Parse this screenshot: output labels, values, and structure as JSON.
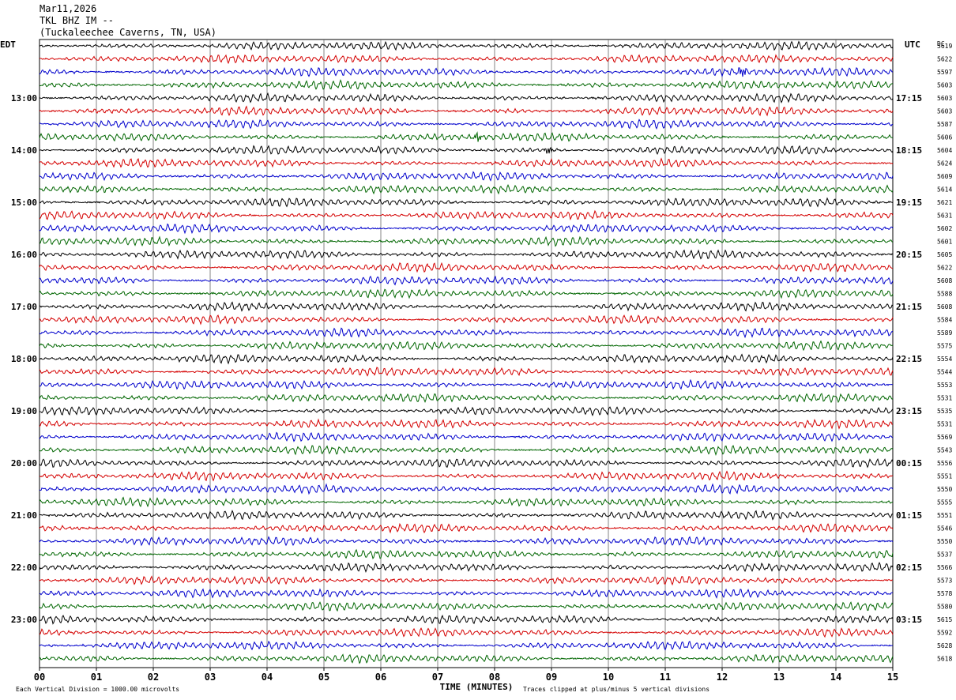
{
  "header": {
    "date": "Mar11,2026",
    "station": "TKL BHZ IM --",
    "location": "(Tuckaleechee Caverns, TN, USA)"
  },
  "chart_data": {
    "type": "line",
    "left_zone_label": "EDT",
    "right_zone_label": "UTC",
    "dc_label": "DC",
    "xlabel": "TIME (MINUTES)",
    "x_ticks": [
      "00",
      "01",
      "02",
      "03",
      "04",
      "05",
      "06",
      "07",
      "08",
      "09",
      "10",
      "11",
      "12",
      "13",
      "14",
      "15"
    ],
    "xlim": [
      0,
      15
    ],
    "footer_left": "Each Vertical Division = 1000.00 microvolts",
    "footer_right": "Traces clipped at plus/minus 5 vertical divisions",
    "trace_colors": [
      "#000000",
      "#d40000",
      "#0000cc",
      "#006600"
    ],
    "left_hour_labels": [
      {
        "trace": 4,
        "label": "13:00"
      },
      {
        "trace": 8,
        "label": "14:00"
      },
      {
        "trace": 12,
        "label": "15:00"
      },
      {
        "trace": 16,
        "label": "16:00"
      },
      {
        "trace": 20,
        "label": "17:00"
      },
      {
        "trace": 24,
        "label": "18:00"
      },
      {
        "trace": 28,
        "label": "19:00"
      },
      {
        "trace": 32,
        "label": "20:00"
      },
      {
        "trace": 36,
        "label": "21:00"
      },
      {
        "trace": 40,
        "label": "22:00"
      },
      {
        "trace": 44,
        "label": "23:00"
      }
    ],
    "right_hour_labels": [
      {
        "trace": 4,
        "label": "17:15"
      },
      {
        "trace": 8,
        "label": "18:15"
      },
      {
        "trace": 12,
        "label": "19:15"
      },
      {
        "trace": 16,
        "label": "20:15"
      },
      {
        "trace": 20,
        "label": "21:15"
      },
      {
        "trace": 24,
        "label": "22:15"
      },
      {
        "trace": 28,
        "label": "23:15"
      },
      {
        "trace": 32,
        "label": "00:15"
      },
      {
        "trace": 36,
        "label": "01:15"
      },
      {
        "trace": 40,
        "label": "02:15"
      },
      {
        "trace": 44,
        "label": "03:15"
      }
    ],
    "dc_values": [
      "5619",
      "5622",
      "5597",
      "5603",
      "5603",
      "5603",
      "5587",
      "5606",
      "5604",
      "5624",
      "5609",
      "5614",
      "5621",
      "5631",
      "5602",
      "5601",
      "5605",
      "5622",
      "5608",
      "5588",
      "5608",
      "5584",
      "5589",
      "5575",
      "5554",
      "5544",
      "5553",
      "5531",
      "5535",
      "5531",
      "5569",
      "5543",
      "5556",
      "5551",
      "5550",
      "5555",
      "5551",
      "5546",
      "5550",
      "5537",
      "5566",
      "5573",
      "5578",
      "5580",
      "5615",
      "5592",
      "5628",
      "5618"
    ],
    "events": [
      {
        "trace": 2,
        "minute": 12.35,
        "amplitude": 3.0
      },
      {
        "trace": 7,
        "minute": 7.7,
        "amplitude": 2.6
      },
      {
        "trace": 8,
        "minute": 8.95,
        "amplitude": 2.2
      }
    ]
  }
}
